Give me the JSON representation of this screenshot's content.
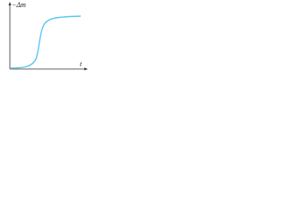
{
  "y_label": "−Δm",
  "x_label": "t"
}
